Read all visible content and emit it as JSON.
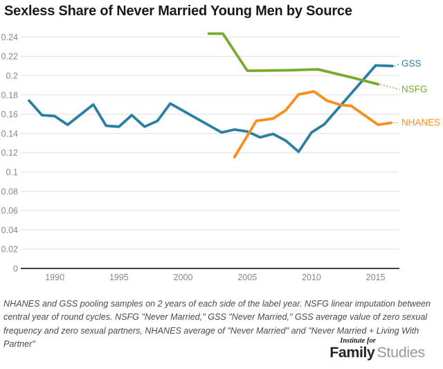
{
  "title": "Sexless Share of Never Married Young Men by Source",
  "footnote_lines": [
    "NHANES and GSS pooling samples on 2 years of each side of the label year. NSFG linear imputation between",
    "central year of round cycles. NSFG \"Never Married,\" GSS \"Never Married,\" GSS average value of zero sexual",
    "frequency and zero sexual partners, NHANES average of \"Never Married\" and \"Never Married + Living With",
    "Partner\""
  ],
  "logo": {
    "top": "Institute for",
    "bold": "Family",
    "light": "Studies"
  },
  "colors": {
    "grid": "#e0e0e0",
    "axis": "#424242",
    "tick_text": "#878787",
    "title_text": "#1a1a1a",
    "footnote_text": "#4a4a4a"
  },
  "chart_data": {
    "type": "line",
    "title": "Sexless Share of Never Married Young Men by Source",
    "xlabel": "",
    "ylabel": "",
    "grid": true,
    "legend_position": "right-edge-labels",
    "xlim": [
      1987.35,
      2016.85
    ],
    "ylim": [
      0,
      0.24
    ],
    "x_ticks": [
      1990,
      1995,
      2000,
      2005,
      2010,
      2015
    ],
    "y_ticks": [
      0,
      0.02,
      0.04,
      0.06,
      0.08,
      0.1,
      0.12,
      0.14,
      0.16,
      0.18,
      0.2,
      0.22,
      0.24
    ],
    "y_tick_labels": [
      "0",
      "0.02",
      "0.04",
      "0.06",
      "0.08",
      "0.1",
      "0.12",
      "0.14",
      "0.16",
      "0.18",
      "0.2",
      "0.22",
      "0.24"
    ],
    "series": [
      {
        "name": "GSS",
        "color": "#2a7fa2",
        "points": [
          [
            1988,
            0.174
          ],
          [
            1989,
            0.159
          ],
          [
            1990,
            0.158
          ],
          [
            1991,
            0.149
          ],
          [
            1993,
            0.17
          ],
          [
            1994,
            0.148
          ],
          [
            1995,
            0.147
          ],
          [
            1996,
            0.159
          ],
          [
            1997,
            0.147
          ],
          [
            1998,
            0.153
          ],
          [
            1999,
            0.171
          ],
          [
            2003,
            0.141
          ],
          [
            2004,
            0.144
          ],
          [
            2005,
            0.142
          ],
          [
            2006,
            0.136
          ],
          [
            2007,
            0.1395
          ],
          [
            2008,
            0.1325
          ],
          [
            2009,
            0.121
          ],
          [
            2010,
            0.141
          ],
          [
            2011,
            0.1495
          ],
          [
            2015,
            0.2105
          ],
          [
            2016.3,
            0.21
          ]
        ]
      },
      {
        "name": "NSFG",
        "color": "#76ab2d",
        "points": [
          [
            2002,
            0.2435
          ],
          [
            2003.1,
            0.2435
          ],
          [
            2005,
            0.205
          ],
          [
            2008,
            0.2055
          ],
          [
            2010.5,
            0.2065
          ],
          [
            2013,
            0.1985
          ],
          [
            2015.2,
            0.191
          ]
        ]
      },
      {
        "name": "NHANES",
        "color": "#f78e1e",
        "points": [
          [
            2004,
            0.1155
          ],
          [
            2005.7,
            0.153
          ],
          [
            2007,
            0.1555
          ],
          [
            2008,
            0.164
          ],
          [
            2009,
            0.1805
          ],
          [
            2010.2,
            0.1835
          ],
          [
            2011.2,
            0.174
          ],
          [
            2012.3,
            0.1695
          ],
          [
            2013.1,
            0.1685
          ],
          [
            2015.2,
            0.149
          ],
          [
            2016.2,
            0.151
          ]
        ]
      }
    ]
  }
}
